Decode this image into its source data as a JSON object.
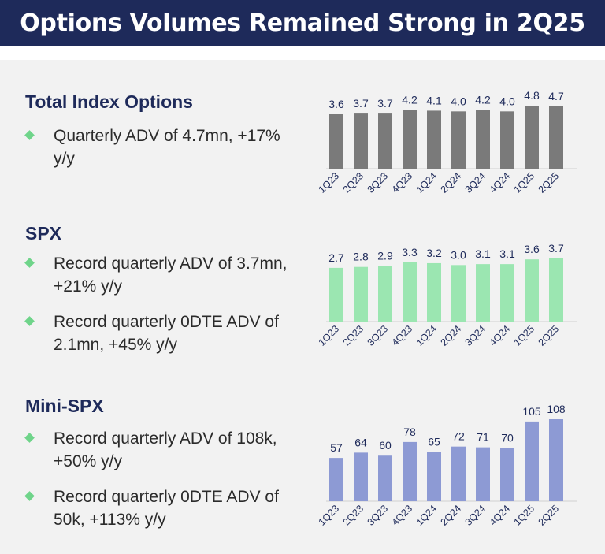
{
  "header": {
    "title": "Options Volumes Remained Strong in 2Q25"
  },
  "sections": [
    {
      "title": "Total Index Options",
      "bullets": [
        "Quarterly ADV of 4.7mn, +17% y/y"
      ]
    },
    {
      "title": "SPX",
      "bullets": [
        "Record quarterly ADV of 3.7mn, +21% y/y",
        "Record quarterly 0DTE ADV of 2.1mn, +45% y/y"
      ]
    },
    {
      "title": "Mini-SPX",
      "bullets": [
        "Record quarterly ADV of 108k, +50% y/y",
        "Record quarterly 0DTE ADV of 50k, +113% y/y"
      ]
    }
  ],
  "chart_data": [
    {
      "type": "bar",
      "categories": [
        "1Q23",
        "2Q23",
        "3Q23",
        "4Q23",
        "1Q24",
        "2Q24",
        "3Q24",
        "4Q24",
        "1Q25",
        "2Q25"
      ],
      "values": [
        3.6,
        3.7,
        3.7,
        4.2,
        4.1,
        4.0,
        4.2,
        4.0,
        4.8,
        4.7
      ],
      "labels": [
        "3.6",
        "3.7",
        "3.7",
        "4.2",
        "4.1",
        "4.0",
        "4.2",
        "4.0",
        "4.8",
        "4.7"
      ],
      "color": "#7a7a7a",
      "ylim": [
        0,
        4.8
      ]
    },
    {
      "type": "bar",
      "categories": [
        "1Q23",
        "2Q23",
        "3Q23",
        "4Q23",
        "1Q24",
        "2Q24",
        "3Q24",
        "4Q24",
        "1Q25",
        "2Q25"
      ],
      "values": [
        2.7,
        2.8,
        2.9,
        3.3,
        3.2,
        3.0,
        3.1,
        3.1,
        3.6,
        3.7
      ],
      "labels": [
        "2.7",
        "2.8",
        "2.9",
        "3.3",
        "3.2",
        "3.0",
        "3.1",
        "3.1",
        "3.6",
        "3.7"
      ],
      "color": "#9be6b1",
      "ylim": [
        0,
        3.7
      ]
    },
    {
      "type": "bar",
      "categories": [
        "1Q23",
        "2Q23",
        "3Q23",
        "4Q23",
        "1Q24",
        "2Q24",
        "3Q24",
        "4Q24",
        "1Q25",
        "2Q25"
      ],
      "values": [
        57,
        64,
        60,
        78,
        65,
        72,
        71,
        70,
        105,
        108
      ],
      "labels": [
        "57",
        "64",
        "60",
        "78",
        "65",
        "72",
        "71",
        "70",
        "105",
        "108"
      ],
      "color": "#8d9ad4",
      "ylim": [
        0,
        108
      ]
    }
  ]
}
